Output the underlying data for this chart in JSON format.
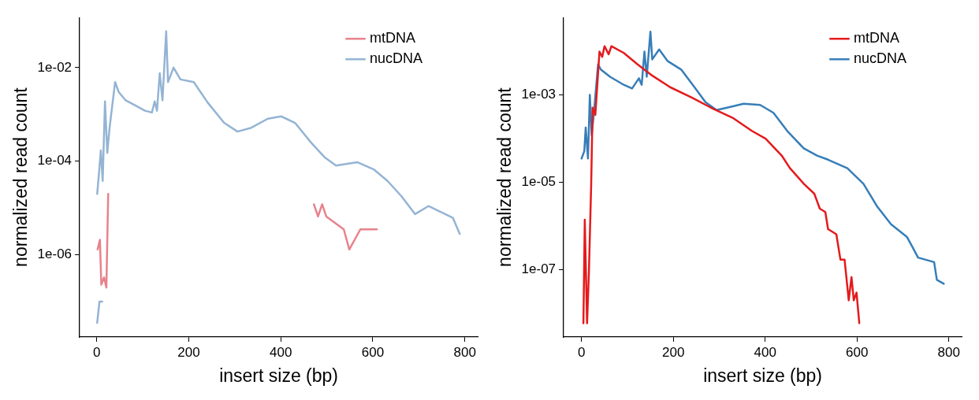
{
  "chart_data": [
    {
      "type": "line",
      "xlabel": "insert size (bp)",
      "ylabel": "normalized read count",
      "log": "y",
      "grid": false,
      "legend": "top right",
      "marker": "none",
      "line_style": "solid",
      "xlim": [
        -37,
        828
      ],
      "ylim": [
        1.75e-08,
        0.118
      ],
      "xticks": [
        0,
        200,
        400,
        600,
        800
      ],
      "yticks": [
        {
          "value": 0.01,
          "label": "1e-02"
        },
        {
          "value": 0.0001,
          "label": "1e-04"
        },
        {
          "value": 1e-06,
          "label": "1e-06"
        }
      ],
      "series": [
        {
          "name": "mtDNA",
          "color": "#e8828c",
          "x": [
            2,
            7,
            10,
            16,
            21,
            25,
            26,
            472,
            481,
            490,
            499,
            537,
            549,
            573,
            609
          ],
          "values": [
            1.3e-06,
            2.1e-06,
            2.3e-07,
            3.3e-07,
            2e-07,
            2e-05,
            null,
            1.2e-05,
            6.6e-06,
            1.2e-05,
            6.6e-06,
            3.5e-06,
            1.3e-06,
            3.5e-06,
            3.5e-06
          ]
        },
        {
          "name": "nucDNA",
          "color": "#94b4d4",
          "x": [
            1,
            6,
            12,
            null,
            1,
            4,
            9,
            13,
            18,
            23,
            28,
            40,
            48,
            63,
            87,
            105,
            120,
            126,
            131,
            137,
            143,
            151,
            155,
            167,
            182,
            211,
            241,
            277,
            306,
            336,
            372,
            401,
            431,
            466,
            496,
            520,
            567,
            603,
            632,
            662,
            692,
            721,
            774,
            789
          ],
          "values": [
            3.5e-08,
            1e-07,
            1e-07,
            null,
            2e-05,
            4.3e-05,
            0.00017,
            3.8e-05,
            0.0019,
            0.00015,
            0.00052,
            0.0049,
            0.003,
            0.002,
            0.0015,
            0.0012,
            0.0011,
            0.0019,
            0.0012,
            0.0076,
            0.002,
            0.06,
            0.0049,
            0.01,
            0.0056,
            0.0049,
            0.0018,
            0.00066,
            0.00043,
            0.00052,
            0.00081,
            0.00091,
            0.00066,
            0.00025,
            0.00012,
            8.1e-05,
            9.5e-05,
            6.6e-05,
            3.8e-05,
            1.8e-05,
            7.4e-06,
            1.1e-05,
            6.2e-06,
            2.8e-06
          ]
        }
      ]
    },
    {
      "type": "line",
      "xlabel": "insert size (bp)",
      "ylabel": "normalized read count",
      "log": "y",
      "grid": false,
      "legend": "top right",
      "marker": "none",
      "line_style": "solid",
      "xlim": [
        -39,
        828
      ],
      "ylim": [
        2.9e-09,
        0.059
      ],
      "xticks": [
        0,
        200,
        400,
        600,
        800
      ],
      "yticks": [
        {
          "value": 0.001,
          "label": "1e-03"
        },
        {
          "value": 1e-05,
          "label": "1e-05"
        },
        {
          "value": 1e-07,
          "label": "1e-07"
        }
      ],
      "series": [
        {
          "name": "mtDNA",
          "color": "#e41a1c",
          "x": [
            4,
            7,
            12,
            16,
            21,
            24,
            30,
            39,
            45,
            50,
            59,
            65,
            92,
            122,
            151,
            193,
            240,
            282,
            329,
            371,
            401,
            436,
            454,
            484,
            507,
            519,
            531,
            537,
            555,
            564,
            573,
            582,
            588,
            593,
            599,
            605
          ],
          "values": [
            6e-09,
            1.4e-06,
            6e-09,
            8.7e-08,
            9.3e-06,
            0.00051,
            0.00035,
            0.0098,
            0.0074,
            0.013,
            0.0085,
            0.013,
            0.0091,
            0.005,
            0.0029,
            0.0015,
            0.00087,
            0.00051,
            0.0003,
            0.00015,
            0.0001,
            4.1e-05,
            2.1e-05,
            9.3e-06,
            5.5e-06,
            2.5e-06,
            2.1e-06,
            8.5e-07,
            6.5e-07,
            1.7e-07,
            1.7e-07,
            2e-08,
            6.8e-08,
            2e-08,
            3e-08,
            6e-09
          ]
        },
        {
          "name": "nucDNA",
          "color": "#377eb8",
          "x": [
            0,
            6,
            9,
            14,
            18,
            22,
            27,
            36,
            42,
            62,
            92,
            110,
            125,
            131,
            137,
            142,
            150,
            154,
            169,
            187,
            217,
            246,
            270,
            294,
            317,
            353,
            389,
            418,
            448,
            484,
            513,
            537,
            579,
            614,
            644,
            674,
            709,
            721,
            733,
            768,
            774,
            789
          ],
          "values": [
            3.5e-05,
            5.2e-05,
            0.00018,
            3.5e-05,
            0.001,
            0.00012,
            0.00039,
            0.005,
            0.0038,
            0.0026,
            0.0017,
            0.0014,
            0.0024,
            0.0017,
            0.0098,
            0.0026,
            0.028,
            0.0065,
            0.011,
            0.006,
            0.0038,
            0.0015,
            0.00068,
            0.00045,
            0.00051,
            0.00063,
            0.00059,
            0.00039,
            0.00015,
            6e-05,
            4.1e-05,
            3.3e-05,
            2.1e-05,
            9.3e-06,
            2.8e-06,
            1.1e-06,
            5.6e-07,
            3.3e-07,
            1.9e-07,
            1.5e-07,
            5.9e-08,
            4.8e-08
          ]
        }
      ]
    }
  ]
}
